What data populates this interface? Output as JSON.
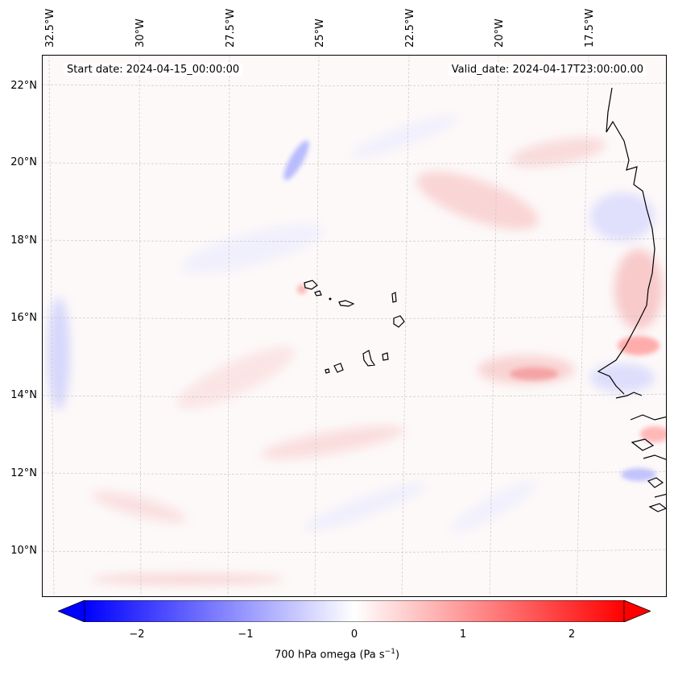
{
  "header": {
    "start_date": "Start date: 2024-04-15_00:00:00",
    "valid_date": "Valid_date: 2024-04-17T23:00:00.00"
  },
  "map": {
    "longitude_labels": [
      "32.5°W",
      "30°W",
      "27.5°W",
      "25°W",
      "22.5°W",
      "20°W",
      "17.5°W"
    ],
    "latitude_labels": [
      "22°N",
      "20°N",
      "18°N",
      "16°N",
      "14°N",
      "12°N",
      "10°N"
    ],
    "field": "700 hPa omega",
    "colormap": "bwr",
    "colors": {
      "negative": "#0000ff",
      "zero": "#ffffff",
      "positive": "#ff0000",
      "coastline": "#000000",
      "gridline": "#c8c8c8"
    }
  },
  "colorbar": {
    "ticks": [
      "−2",
      "−1",
      "0",
      "1",
      "2"
    ],
    "tick_values": [
      -2,
      -1,
      0,
      1,
      2
    ],
    "range": [
      -2.6,
      2.6
    ],
    "extend": "both",
    "label": "700 hPa omega (Pa s",
    "label_exponent": "−1",
    "label_close": ")"
  }
}
